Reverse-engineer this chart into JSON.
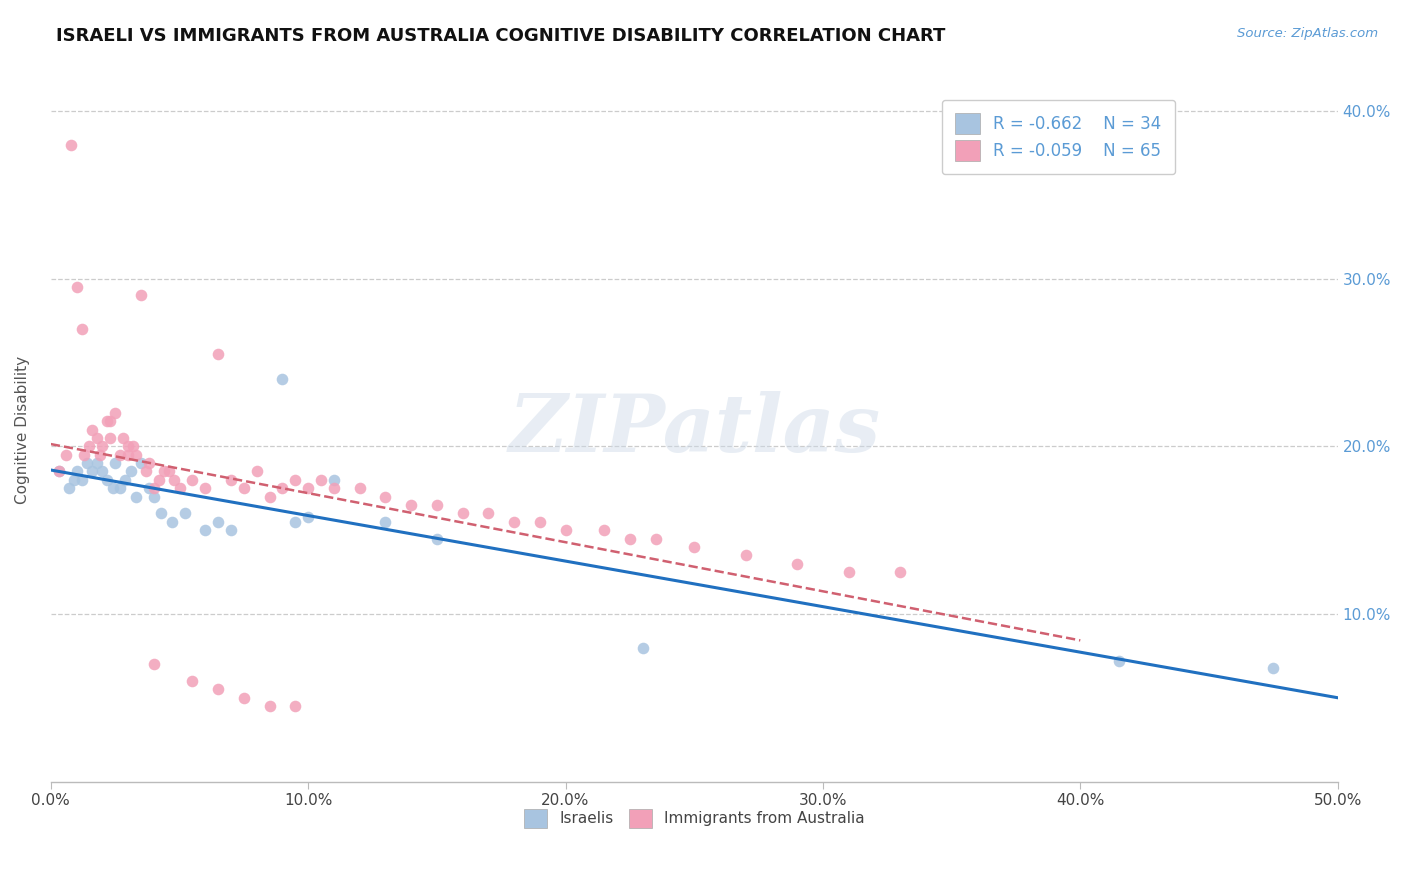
{
  "title": "ISRAELI VS IMMIGRANTS FROM AUSTRALIA COGNITIVE DISABILITY CORRELATION CHART",
  "source_text": "Source: ZipAtlas.com",
  "ylabel": "Cognitive Disability",
  "xlim": [
    0.0,
    0.5
  ],
  "ylim": [
    0.0,
    0.42
  ],
  "x_ticks": [
    0.0,
    0.1,
    0.2,
    0.3,
    0.4,
    0.5
  ],
  "x_tick_labels": [
    "0.0%",
    "10.0%",
    "20.0%",
    "30.0%",
    "40.0%",
    "50.0%"
  ],
  "y_ticks": [
    0.1,
    0.2,
    0.3,
    0.4
  ],
  "y_tick_labels": [
    "10.0%",
    "20.0%",
    "30.0%",
    "40.0%"
  ],
  "legend_R1": "-0.662",
  "legend_N1": "34",
  "legend_R2": "-0.059",
  "legend_N2": "65",
  "color_israeli": "#a8c4e0",
  "color_immigrant": "#f2a0b8",
  "color_line_israeli": "#2070c0",
  "color_line_immigrant": "#d06070",
  "watermark_text": "ZIPatlas",
  "israelis_x": [
    0.003,
    0.007,
    0.009,
    0.01,
    0.012,
    0.014,
    0.016,
    0.018,
    0.02,
    0.022,
    0.024,
    0.025,
    0.027,
    0.029,
    0.031,
    0.033,
    0.035,
    0.038,
    0.04,
    0.043,
    0.047,
    0.052,
    0.06,
    0.065,
    0.07,
    0.09,
    0.095,
    0.1,
    0.11,
    0.13,
    0.15,
    0.23,
    0.415,
    0.475
  ],
  "israelis_y": [
    0.185,
    0.175,
    0.18,
    0.185,
    0.18,
    0.19,
    0.185,
    0.19,
    0.185,
    0.18,
    0.175,
    0.19,
    0.175,
    0.18,
    0.185,
    0.17,
    0.19,
    0.175,
    0.17,
    0.16,
    0.155,
    0.16,
    0.15,
    0.155,
    0.15,
    0.24,
    0.155,
    0.158,
    0.18,
    0.155,
    0.145,
    0.08,
    0.072,
    0.068
  ],
  "immigrants_x": [
    0.003,
    0.006,
    0.008,
    0.01,
    0.012,
    0.013,
    0.015,
    0.016,
    0.018,
    0.019,
    0.02,
    0.022,
    0.023,
    0.025,
    0.027,
    0.028,
    0.03,
    0.032,
    0.033,
    0.035,
    0.037,
    0.038,
    0.04,
    0.042,
    0.044,
    0.046,
    0.048,
    0.05,
    0.055,
    0.06,
    0.065,
    0.07,
    0.075,
    0.08,
    0.085,
    0.09,
    0.095,
    0.1,
    0.105,
    0.11,
    0.12,
    0.13,
    0.14,
    0.15,
    0.16,
    0.17,
    0.18,
    0.19,
    0.2,
    0.215,
    0.225,
    0.235,
    0.25,
    0.27,
    0.29,
    0.31,
    0.33,
    0.04,
    0.055,
    0.065,
    0.075,
    0.085,
    0.095,
    0.023,
    0.03
  ],
  "immigrants_y": [
    0.185,
    0.195,
    0.38,
    0.295,
    0.27,
    0.195,
    0.2,
    0.21,
    0.205,
    0.195,
    0.2,
    0.215,
    0.205,
    0.22,
    0.195,
    0.205,
    0.195,
    0.2,
    0.195,
    0.29,
    0.185,
    0.19,
    0.175,
    0.18,
    0.185,
    0.185,
    0.18,
    0.175,
    0.18,
    0.175,
    0.255,
    0.18,
    0.175,
    0.185,
    0.17,
    0.175,
    0.18,
    0.175,
    0.18,
    0.175,
    0.175,
    0.17,
    0.165,
    0.165,
    0.16,
    0.16,
    0.155,
    0.155,
    0.15,
    0.15,
    0.145,
    0.145,
    0.14,
    0.135,
    0.13,
    0.125,
    0.125,
    0.07,
    0.06,
    0.055,
    0.05,
    0.045,
    0.045,
    0.215,
    0.2
  ]
}
